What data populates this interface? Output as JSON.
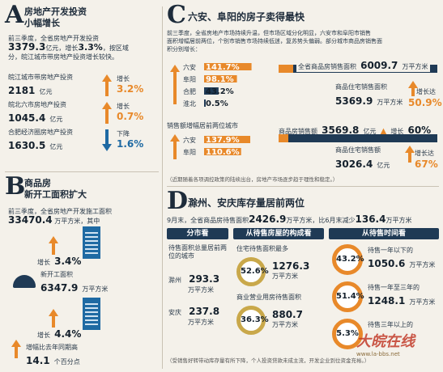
{
  "panelA": {
    "letter": "A",
    "title1": "房地产开发投资",
    "title2": "小幅增长",
    "intro": "前三季度，全省房地产开发投资",
    "total_value": "3379.3",
    "total_unit": "亿元，",
    "growth_label": "增长",
    "growth_value": "3.3%",
    "tail": "，按区域",
    "tail2": "分，皖江城市带房地产投资增长较快。",
    "items": [
      {
        "label": "皖江城市带房地产投资",
        "value": "2181",
        "unit": "亿元",
        "change_label": "增长",
        "change": "3.2%"
      },
      {
        "label": "皖北六市房地产投资",
        "value": "1045.4",
        "unit": "亿元",
        "change_label": "增长",
        "change": "0.7%"
      },
      {
        "label": "合肥经济圈房地产投资",
        "value": "1630.5",
        "unit": "亿元",
        "change_label": "下降",
        "change": "1.6%"
      }
    ]
  },
  "panelB": {
    "letter": "B",
    "title1": "商品房",
    "title2": "新开工面积扩大",
    "intro": "前三季度，全省房地产开发施工面积",
    "area_value": "33470.4",
    "area_unit": "万平方米",
    "area_tail": "，其中",
    "area_growth_label": "增长",
    "area_growth": "3.4%",
    "new_label": "新开工面积",
    "new_value": "6347.9",
    "new_unit": "万平方米",
    "new_growth_label": "增长",
    "new_growth": "4.4%",
    "bottom_label": "增幅比去年同期高",
    "bottom_value": "14.1",
    "bottom_unit": "个百分点"
  },
  "panelC": {
    "letter": "C",
    "title": "六安、阜阳的房子卖得最快",
    "text1": "前三季度，全省房地产市场持续升温，但市场区域分化明显，六安市和阜阳市销售",
    "text2": "面积增幅居前两位，个别市销售市场持续低迷，复苏势头偏弱。部分城市商品房销售面",
    "text3": "积分别增长：",
    "cities": [
      {
        "name": "六安",
        "value": "141.7%"
      },
      {
        "name": "阜阳",
        "value": "98.1%"
      },
      {
        "name": "合肥",
        "value": "43.2%"
      },
      {
        "name": "淮北",
        "value": "0.5%"
      }
    ],
    "sales_area_label": "全省商品房销售面积",
    "sales_area_value": "6009.7",
    "sales_area_unit": "万平方米",
    "res_area_label": "商品住宅销售面积",
    "res_area_value": "5369.9",
    "res_area_unit": "万平方米",
    "res_growth_label": "增长达",
    "res_growth": "50.9%",
    "amount_title": "销售额增幅居前两位城市",
    "amount_cities": [
      {
        "name": "六安",
        "value": "137.9%"
      },
      {
        "name": "阜阳",
        "value": "110.6%"
      }
    ],
    "amount_label": "商品房销售额",
    "amount_value": "3569.8",
    "amount_unit": "亿元",
    "amount_growth_label": "增长",
    "amount_growth": "60%",
    "res_amount_label": "商品住宅销售额",
    "res_amount_value": "3026.4",
    "res_amount_unit": "亿元",
    "res_amount_growth_label": "增长达",
    "res_amount_growth": "67%",
    "note": "（近期随着各项调控政策的陆续出台，房地产市场逐步趋于理性和稳定。）"
  },
  "panelD": {
    "letter": "D",
    "title": "滁州、安庆库存量居前两位",
    "intro_pre": "9月末，全省商品房待售面积",
    "intro_value": "2426.9",
    "intro_mid": "万平方米，比6月末减少",
    "intro_value2": "136.4",
    "intro_unit": "万平方米",
    "headers": [
      "分市看",
      "从待售房屋的构成看",
      "从待售时间看"
    ],
    "city_intro": "待售面积总量居前两位的城市",
    "cities": [
      {
        "name": "滁州",
        "value": "293.3",
        "unit": "万平方米"
      },
      {
        "name": "安庆",
        "value": "237.8",
        "unit": "万平方米"
      }
    ],
    "composition": [
      {
        "label": "住宅待售面积最多",
        "pct": "52.6%",
        "value": "1276.3",
        "unit": "万平方米"
      },
      {
        "label": "商业营业用房待售面积",
        "pct": "36.3%",
        "value": "880.7",
        "unit": "万平方米"
      }
    ],
    "time": [
      {
        "pct": "43.2%",
        "label": "待售一年以下的",
        "value": "1050.6",
        "unit": "万平方米"
      },
      {
        "pct": "51.4%",
        "label": "待售一年至三年的",
        "value": "1248.1",
        "unit": "万平方米"
      },
      {
        "pct": "5.3%",
        "label": "待售三年以上的",
        "value": "",
        "unit": ""
      }
    ],
    "note": "（受销售好转带动库存量有所下降，个人投资贷款未成主流，开发企业到位资金充裕。）"
  },
  "watermark": "大皖在线",
  "watermark_url": "www.la-bbs.net",
  "chart_data": {
    "type": "bar",
    "title": "六安、阜阳的房子卖得最快",
    "categories": [
      "六安",
      "阜阳",
      "合肥",
      "淮北"
    ],
    "values": [
      141.7,
      98.1,
      43.2,
      0.5
    ],
    "xlabel": "",
    "ylabel": "",
    "ylim": [
      0,
      150
    ]
  }
}
